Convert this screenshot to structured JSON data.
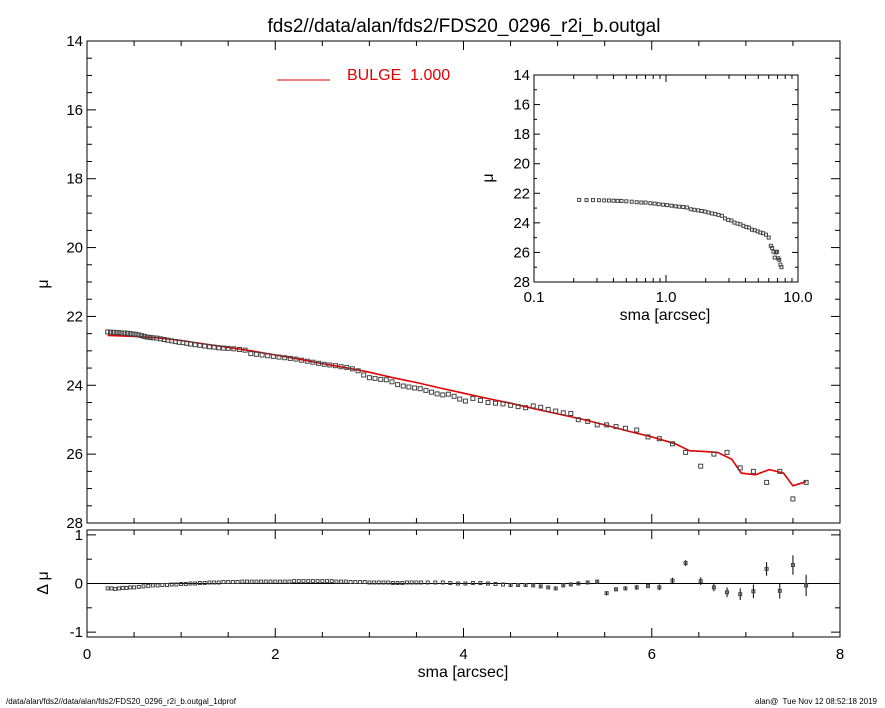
{
  "header": {
    "title": "fds2//data/alan/fds2/FDS20_0296_r2i_b.outgal"
  },
  "footer": {
    "left": "/data/alan/fds2//data/alan/fds2/FDS20_0296_r2i_b.outgal_1dprof",
    "right": "alan@  Tue Nov 12 08:52:18 2019"
  },
  "colors": {
    "model": "#e00000",
    "data": "#444444",
    "zero_line": "#000000"
  },
  "chart_data": [
    {
      "type": "scatter",
      "panel": "main",
      "xlabel": "",
      "ylabel": "μ",
      "xlim": [
        0,
        8
      ],
      "ylim": [
        28,
        14
      ],
      "y_inverted": true,
      "x_ticks": [
        "0",
        "2",
        "4",
        "6",
        "8"
      ],
      "y_ticks": [
        "14",
        "16",
        "18",
        "20",
        "22",
        "24",
        "26",
        "28"
      ],
      "legend": {
        "position": "top-center",
        "entries": [
          {
            "name": "BULGE  1.000",
            "color": "#e00000"
          }
        ]
      },
      "series": [
        {
          "name": "data",
          "style": "square-markers",
          "x": [
            0.22,
            0.25,
            0.28,
            0.31,
            0.34,
            0.37,
            0.4,
            0.43,
            0.46,
            0.49,
            0.52,
            0.55,
            0.58,
            0.61,
            0.64,
            0.67,
            0.7,
            0.74,
            0.78,
            0.82,
            0.86,
            0.9,
            0.94,
            0.98,
            1.02,
            1.06,
            1.1,
            1.15,
            1.2,
            1.25,
            1.3,
            1.35,
            1.4,
            1.45,
            1.5,
            1.56,
            1.62,
            1.68,
            1.74,
            1.8,
            1.86,
            1.92,
            1.98,
            2.04,
            2.1,
            2.16,
            2.22,
            2.28,
            2.34,
            2.4,
            2.46,
            2.52,
            2.58,
            2.64,
            2.7,
            2.76,
            2.82,
            2.88,
            2.94,
            3.0,
            3.06,
            3.12,
            3.18,
            3.24,
            3.3,
            3.36,
            3.42,
            3.48,
            3.54,
            3.6,
            3.66,
            3.72,
            3.78,
            3.84,
            3.9,
            3.96,
            4.02,
            4.1,
            4.18,
            4.26,
            4.34,
            4.42,
            4.5,
            4.58,
            4.66,
            4.74,
            4.82,
            4.9,
            4.98,
            5.06,
            5.14,
            5.22,
            5.32,
            5.42,
            5.52,
            5.62,
            5.72,
            5.84,
            5.96,
            6.08,
            6.22,
            6.36,
            6.52,
            6.66,
            6.8,
            6.94,
            7.08,
            7.22,
            7.36,
            7.5,
            7.64
          ],
          "y": [
            22.45,
            22.46,
            22.46,
            22.47,
            22.47,
            22.48,
            22.48,
            22.49,
            22.5,
            22.51,
            22.52,
            22.54,
            22.56,
            22.58,
            22.6,
            22.61,
            22.62,
            22.63,
            22.65,
            22.67,
            22.69,
            22.71,
            22.73,
            22.75,
            22.76,
            22.78,
            22.8,
            22.82,
            22.84,
            22.86,
            22.88,
            22.89,
            22.91,
            22.92,
            22.93,
            22.94,
            22.96,
            22.98,
            23.08,
            23.1,
            23.12,
            23.14,
            23.16,
            23.18,
            23.2,
            23.22,
            23.24,
            23.27,
            23.3,
            23.33,
            23.36,
            23.39,
            23.41,
            23.43,
            23.46,
            23.48,
            23.52,
            23.58,
            23.7,
            23.78,
            23.8,
            23.83,
            23.84,
            23.9,
            23.98,
            24.02,
            24.05,
            24.08,
            24.1,
            24.15,
            24.2,
            24.25,
            24.28,
            24.26,
            24.32,
            24.4,
            24.46,
            24.38,
            24.44,
            24.5,
            24.52,
            24.54,
            24.58,
            24.62,
            24.65,
            24.6,
            24.64,
            24.7,
            24.75,
            24.8,
            24.82,
            25.0,
            25.05,
            25.15,
            25.15,
            25.2,
            25.25,
            25.3,
            25.5,
            25.55,
            25.7,
            25.95,
            26.35,
            26.0,
            25.95,
            26.4,
            26.5,
            26.82,
            26.5,
            27.3,
            26.82
          ]
        },
        {
          "name": "BULGE  1.000",
          "style": "line",
          "x": [
            0.22,
            0.5,
            0.75,
            1.0,
            1.25,
            1.5,
            1.75,
            2.0,
            2.25,
            2.5,
            2.75,
            3.0,
            3.25,
            3.5,
            3.75,
            4.0,
            4.25,
            4.5,
            4.75,
            5.0,
            5.25,
            5.5,
            5.75,
            6.0,
            6.25,
            6.4,
            6.55,
            6.7,
            6.85,
            6.95,
            7.1,
            7.25,
            7.4,
            7.5,
            7.64
          ],
          "y": [
            22.55,
            22.58,
            22.62,
            22.7,
            22.8,
            22.9,
            23.0,
            23.12,
            23.24,
            23.37,
            23.49,
            23.62,
            23.78,
            23.92,
            24.08,
            24.23,
            24.38,
            24.52,
            24.68,
            24.83,
            24.98,
            25.15,
            25.33,
            25.5,
            25.7,
            25.9,
            25.92,
            25.95,
            26.15,
            26.55,
            26.6,
            26.45,
            26.55,
            26.92,
            26.8
          ]
        }
      ]
    },
    {
      "type": "scatter",
      "panel": "residual",
      "xlabel": "sma [arcsec]",
      "ylabel": "Δ μ",
      "xlim": [
        0,
        8
      ],
      "ylim": [
        -1.1,
        1.1
      ],
      "x_ticks": [
        "0",
        "2",
        "4",
        "6",
        "8"
      ],
      "y_ticks": [
        "1",
        "0",
        "-1"
      ],
      "series": [
        {
          "name": "residuals",
          "style": "square-markers-with-errorbars",
          "x": [
            0.22,
            0.26,
            0.3,
            0.34,
            0.38,
            0.42,
            0.46,
            0.5,
            0.55,
            0.6,
            0.65,
            0.7,
            0.75,
            0.8,
            0.85,
            0.9,
            0.95,
            1.0,
            1.05,
            1.1,
            1.15,
            1.2,
            1.25,
            1.3,
            1.35,
            1.4,
            1.45,
            1.5,
            1.55,
            1.6,
            1.65,
            1.7,
            1.75,
            1.8,
            1.85,
            1.9,
            1.95,
            2.0,
            2.05,
            2.1,
            2.15,
            2.2,
            2.25,
            2.3,
            2.35,
            2.4,
            2.45,
            2.5,
            2.55,
            2.6,
            2.65,
            2.7,
            2.75,
            2.8,
            2.85,
            2.9,
            2.95,
            3.0,
            3.05,
            3.1,
            3.15,
            3.2,
            3.25,
            3.3,
            3.35,
            3.4,
            3.45,
            3.5,
            3.55,
            3.62,
            3.7,
            3.78,
            3.86,
            3.94,
            4.02,
            4.1,
            4.18,
            4.26,
            4.34,
            4.42,
            4.5,
            4.58,
            4.66,
            4.74,
            4.82,
            4.9,
            4.98,
            5.06,
            5.14,
            5.22,
            5.32,
            5.42,
            5.52,
            5.62,
            5.72,
            5.84,
            5.96,
            6.08,
            6.22,
            6.36,
            6.52,
            6.66,
            6.8,
            6.94,
            7.08,
            7.22,
            7.36,
            7.5,
            7.64
          ],
          "y": [
            -0.1,
            -0.1,
            -0.11,
            -0.1,
            -0.09,
            -0.09,
            -0.08,
            -0.08,
            -0.07,
            -0.06,
            -0.05,
            -0.04,
            -0.04,
            -0.03,
            -0.03,
            -0.02,
            -0.02,
            -0.01,
            -0.01,
            0.0,
            0.0,
            0.01,
            0.01,
            0.02,
            0.02,
            0.02,
            0.03,
            0.03,
            0.03,
            0.03,
            0.04,
            0.04,
            0.04,
            0.04,
            0.04,
            0.04,
            0.04,
            0.04,
            0.04,
            0.04,
            0.04,
            0.05,
            0.05,
            0.05,
            0.05,
            0.05,
            0.05,
            0.05,
            0.05,
            0.05,
            0.04,
            0.04,
            0.04,
            0.03,
            0.03,
            0.03,
            0.03,
            0.02,
            0.02,
            0.02,
            0.02,
            0.02,
            0.01,
            0.01,
            0.01,
            0.02,
            0.02,
            0.02,
            0.02,
            0.02,
            0.02,
            0.02,
            0.01,
            0.0,
            0.0,
            0.01,
            0.01,
            0.0,
            -0.01,
            -0.02,
            -0.03,
            -0.03,
            -0.03,
            -0.04,
            -0.06,
            -0.08,
            -0.1,
            -0.04,
            -0.02,
            0.0,
            0.02,
            0.04,
            -0.2,
            -0.12,
            -0.1,
            -0.08,
            -0.05,
            -0.08,
            0.06,
            0.42,
            0.05,
            -0.08,
            -0.18,
            -0.22,
            -0.16,
            0.3,
            -0.15,
            0.38,
            -0.04
          ],
          "err": [
            0.01,
            0.01,
            0.01,
            0.01,
            0.01,
            0.01,
            0.01,
            0.01,
            0.01,
            0.01,
            0.01,
            0.01,
            0.01,
            0.01,
            0.01,
            0.01,
            0.01,
            0.01,
            0.01,
            0.01,
            0.01,
            0.01,
            0.01,
            0.01,
            0.01,
            0.01,
            0.01,
            0.01,
            0.01,
            0.01,
            0.01,
            0.01,
            0.01,
            0.01,
            0.01,
            0.01,
            0.01,
            0.01,
            0.01,
            0.01,
            0.01,
            0.01,
            0.01,
            0.01,
            0.01,
            0.01,
            0.01,
            0.01,
            0.01,
            0.01,
            0.01,
            0.01,
            0.01,
            0.01,
            0.01,
            0.01,
            0.01,
            0.01,
            0.01,
            0.01,
            0.01,
            0.01,
            0.01,
            0.01,
            0.01,
            0.01,
            0.01,
            0.01,
            0.01,
            0.01,
            0.01,
            0.01,
            0.01,
            0.01,
            0.01,
            0.01,
            0.01,
            0.01,
            0.01,
            0.01,
            0.02,
            0.02,
            0.02,
            0.02,
            0.02,
            0.02,
            0.02,
            0.02,
            0.02,
            0.02,
            0.03,
            0.03,
            0.04,
            0.04,
            0.04,
            0.05,
            0.05,
            0.06,
            0.06,
            0.06,
            0.08,
            0.08,
            0.1,
            0.12,
            0.14,
            0.14,
            0.16,
            0.2,
            0.22
          ]
        }
      ]
    },
    {
      "type": "scatter",
      "panel": "inset",
      "xlabel": "sma [arcsec]",
      "ylabel": "μ",
      "x_scale": "log",
      "xlim": [
        0.1,
        10.0
      ],
      "ylim": [
        28,
        14
      ],
      "y_inverted": true,
      "x_ticks": [
        "0.1",
        "1.0",
        "10.0"
      ],
      "y_ticks": [
        "14",
        "16",
        "18",
        "20",
        "22",
        "24",
        "26",
        "28"
      ],
      "series": [
        {
          "name": "data",
          "style": "square-markers",
          "x": [
            0.22,
            0.25,
            0.28,
            0.31,
            0.34,
            0.37,
            0.4,
            0.43,
            0.46,
            0.5,
            0.55,
            0.6,
            0.65,
            0.7,
            0.76,
            0.82,
            0.88,
            0.95,
            1.02,
            1.1,
            1.18,
            1.26,
            1.35,
            1.44,
            1.54,
            1.64,
            1.75,
            1.86,
            1.98,
            2.1,
            2.23,
            2.36,
            2.5,
            2.65,
            2.8,
            2.96,
            3.13,
            3.3,
            3.48,
            3.66,
            3.86,
            4.06,
            4.26,
            4.48,
            4.7,
            4.94,
            5.18,
            5.44,
            5.72,
            6.0,
            6.22,
            6.36,
            6.52,
            6.66,
            6.8,
            6.94,
            7.08,
            7.22,
            7.36,
            7.5
          ],
          "y": [
            22.45,
            22.46,
            22.46,
            22.47,
            22.48,
            22.49,
            22.5,
            22.51,
            22.52,
            22.54,
            22.57,
            22.6,
            22.62,
            22.63,
            22.67,
            22.7,
            22.74,
            22.77,
            22.8,
            22.84,
            22.88,
            22.91,
            22.93,
            22.96,
            23.08,
            23.12,
            23.16,
            23.2,
            23.24,
            23.3,
            23.36,
            23.41,
            23.46,
            23.52,
            23.7,
            23.8,
            23.84,
            23.98,
            24.05,
            24.1,
            24.2,
            24.28,
            24.32,
            24.46,
            24.5,
            24.58,
            24.65,
            24.7,
            24.8,
            25.0,
            25.55,
            25.7,
            25.95,
            26.35,
            26.0,
            25.95,
            26.4,
            26.5,
            26.82,
            27.0
          ]
        }
      ]
    }
  ]
}
